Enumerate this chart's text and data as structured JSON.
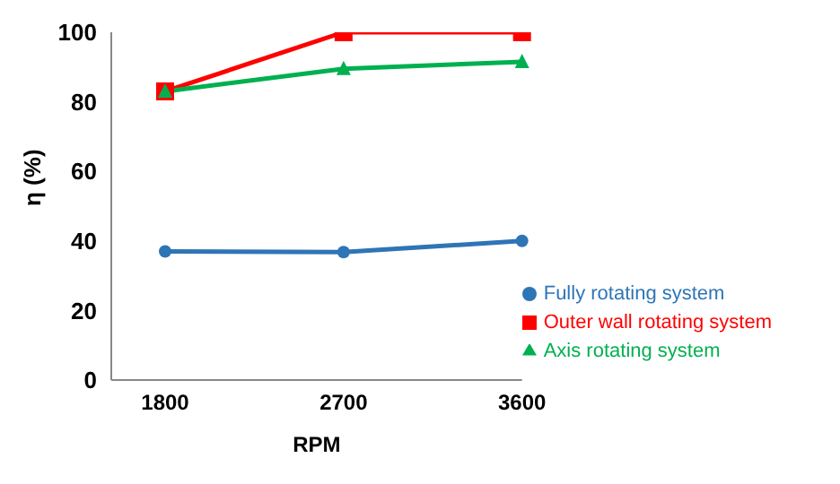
{
  "chart_data": {
    "type": "line",
    "xlabel": "RPM",
    "ylabel": "η (%)",
    "categories": [
      "1800",
      "2700",
      "3600"
    ],
    "series": [
      {
        "name": "Fully rotating system",
        "color": "#2e75b6",
        "marker": "circle",
        "values": [
          37,
          36.8,
          40
        ]
      },
      {
        "name": "Outer wall rotating system",
        "color": "#ff0000",
        "marker": "square",
        "values": [
          83,
          100,
          100
        ]
      },
      {
        "name": "Axis rotating system",
        "color": "#00b050",
        "marker": "triangle",
        "values": [
          83,
          89.5,
          91.5
        ]
      }
    ],
    "ylim": [
      0,
      100
    ],
    "yticks": [
      0,
      20,
      40,
      60,
      80,
      100
    ],
    "grid": false,
    "legend": "bottom right"
  }
}
